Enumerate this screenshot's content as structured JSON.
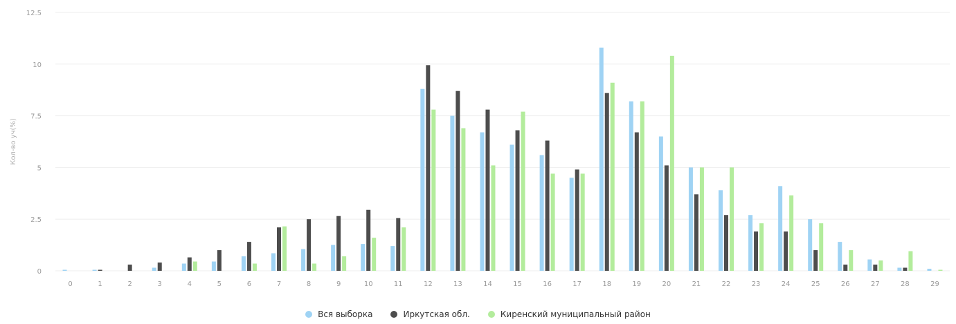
{
  "chart_data": {
    "type": "bar",
    "ylabel": "Кол-во уч(%)",
    "yticks": [
      "0",
      "2.5",
      "5",
      "7.5",
      "10",
      "12.5"
    ],
    "ylim": [
      0,
      12.5
    ],
    "grid": true,
    "legend_position": "bottom",
    "categories": [
      "0",
      "1",
      "2",
      "3",
      "4",
      "5",
      "6",
      "7",
      "8",
      "9",
      "10",
      "11",
      "12",
      "13",
      "14",
      "15",
      "16",
      "17",
      "18",
      "19",
      "20",
      "21",
      "22",
      "23",
      "24",
      "25",
      "26",
      "27",
      "28",
      "29"
    ],
    "series": [
      {
        "name": "Вся выборка",
        "color": "#9fd3f4",
        "values": [
          0.05,
          0.05,
          0,
          0.15,
          0.35,
          0.45,
          0.7,
          0.85,
          1.05,
          1.25,
          1.3,
          1.2,
          8.8,
          7.5,
          6.7,
          6.1,
          5.6,
          4.5,
          10.8,
          8.2,
          6.5,
          5.0,
          3.9,
          2.7,
          4.1,
          2.5,
          1.4,
          0.55,
          0.15,
          0.1
        ]
      },
      {
        "name": "Иркутская обл.",
        "color": "#4d4d4d",
        "values": [
          0,
          0.05,
          0.3,
          0.4,
          0.65,
          1.0,
          1.4,
          2.1,
          2.5,
          2.65,
          2.95,
          2.55,
          9.95,
          8.7,
          7.8,
          6.8,
          6.3,
          4.9,
          8.6,
          6.7,
          5.1,
          3.7,
          2.7,
          1.9,
          1.9,
          1.0,
          0.3,
          0.3,
          0.15,
          0
        ]
      },
      {
        "name": "Киренский муниципальный район",
        "color": "#b3ec9c",
        "values": [
          0,
          0,
          0,
          0,
          0.45,
          0,
          0.35,
          2.15,
          0.35,
          0.7,
          1.6,
          2.1,
          7.8,
          6.9,
          5.1,
          7.7,
          4.7,
          4.7,
          9.1,
          8.2,
          10.4,
          5.0,
          5.0,
          2.3,
          3.65,
          2.3,
          1.0,
          0.5,
          0.95,
          0.05
        ]
      }
    ]
  }
}
